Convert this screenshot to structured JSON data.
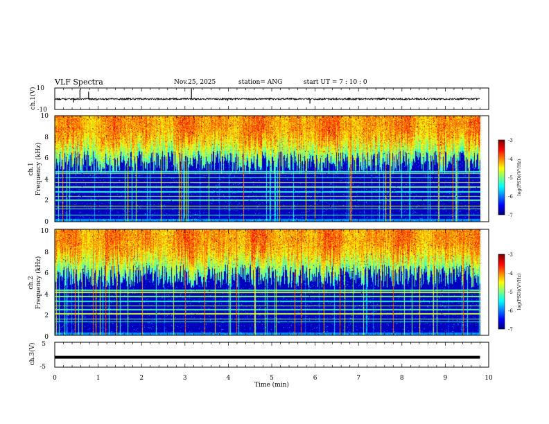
{
  "header": {
    "title": "VLF Spectra",
    "date": "Nov.25, 2025",
    "station": "station= ANG",
    "start_time": "start  UT =   7 : 10 : 0"
  },
  "chart_data": [
    {
      "type": "line",
      "name": "ch1-waveform",
      "ylabel": "ch.1(V)",
      "ylim": [
        -10,
        10
      ],
      "yticks": [
        "10",
        "-10"
      ],
      "xlim": [
        0,
        10
      ],
      "x_end": 9.8,
      "baseline": -0.2,
      "noise_amplitude": 0.8,
      "spikes": [
        {
          "x": 0.43,
          "v": -3.5
        },
        {
          "x": 0.58,
          "v": 8.5
        },
        {
          "x": 0.78,
          "v": 6.5
        },
        {
          "x": 0.97,
          "v": -1.5
        },
        {
          "x": 3.15,
          "v": 9.5
        },
        {
          "x": 3.98,
          "v": -2.0
        },
        {
          "x": 5.88,
          "v": -4.5
        },
        {
          "x": 9.55,
          "v": -1.5
        }
      ]
    },
    {
      "type": "heatmap",
      "name": "ch1-spectrogram",
      "ylabel_line1": "ch.1",
      "ylabel_line2": "Frequency (kHz)",
      "ylim": [
        0,
        10
      ],
      "yticks": [
        "0",
        "2",
        "4",
        "6",
        "8",
        "10"
      ],
      "xlim": [
        0,
        10
      ],
      "x_end": 9.8,
      "colorbar": {
        "label": "log(PSD)(V²/Hz)",
        "ticks": [
          "-3",
          "-4",
          "-5",
          "-6",
          "-7"
        ],
        "range": [
          -7,
          -3
        ]
      },
      "hum_lines_khz": [
        0.6,
        1.2,
        1.45,
        2.0,
        2.35,
        2.8,
        3.25,
        3.7,
        4.15,
        4.55,
        4.7
      ],
      "seed": 7
    },
    {
      "type": "heatmap",
      "name": "ch2-spectrogram",
      "ylabel_line1": "ch.2",
      "ylabel_line2": "Frequency (kHz)",
      "ylim": [
        0,
        10
      ],
      "yticks": [
        "0",
        "2",
        "4",
        "6",
        "8",
        "10"
      ],
      "xlim": [
        0,
        10
      ],
      "x_end": 9.8,
      "colorbar": {
        "label": "log(PSD)(V²/Hz)",
        "ticks": [
          "-3",
          "-4",
          "-5",
          "-6",
          "-7"
        ],
        "range": [
          -7,
          -3
        ]
      },
      "hum_lines_khz": [
        1.25,
        1.5,
        2.0,
        2.4,
        2.75,
        3.2,
        3.65,
        4.05,
        4.25
      ],
      "seed": 13
    },
    {
      "type": "line",
      "name": "ch3-waveform",
      "ylabel": "ch.3(V)",
      "ylim": [
        -5,
        5
      ],
      "yticks": [
        "5",
        "-5"
      ],
      "xlim": [
        0,
        10
      ],
      "x_end": 9.8,
      "value": -1.0,
      "xlabel": "Time (min)",
      "xticks": [
        "0",
        "1",
        "2",
        "3",
        "4",
        "5",
        "6",
        "7",
        "8",
        "9",
        "10"
      ]
    }
  ]
}
